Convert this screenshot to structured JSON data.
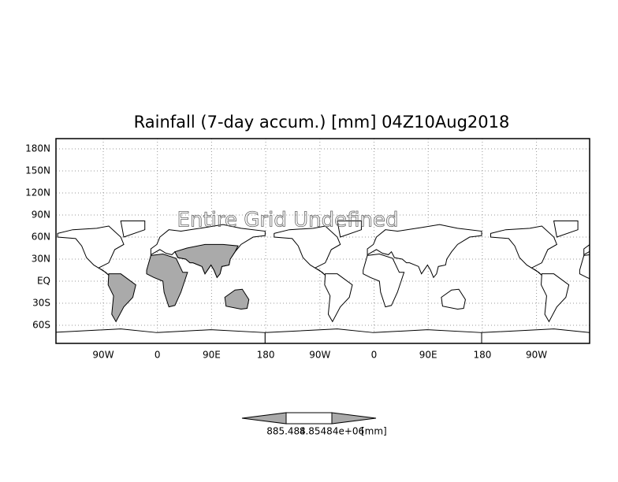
{
  "title": "Rainfall (7-day accum.) [mm] 04Z10Aug2018",
  "annotation": "Entire Grid Undefined",
  "lat_labels": [
    "180N",
    "150N",
    "120N",
    "90N",
    "60N",
    "30N",
    "EQ",
    "30S",
    "60S"
  ],
  "lon_labels": [
    "90W",
    "0",
    "90E",
    "180",
    "90W",
    "0",
    "90E",
    "180",
    "90W"
  ],
  "colorbar": {
    "labels": [
      "885.484",
      "8.85484e+06"
    ],
    "unit": "[mm]"
  }
}
